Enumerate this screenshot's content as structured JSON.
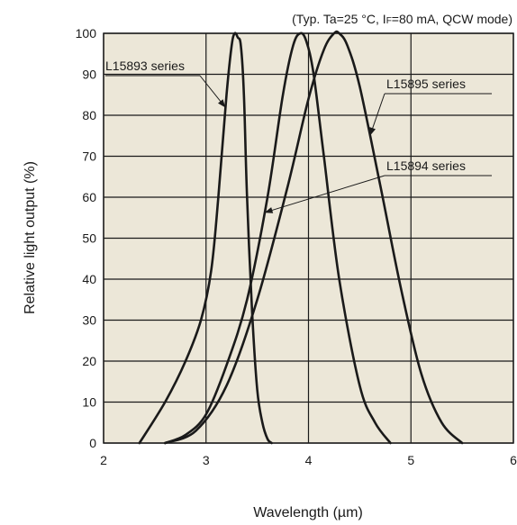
{
  "chart_data": {
    "type": "line",
    "condition": "(Typ. Ta=25 °C, I",
    "condition_sub": "F",
    "condition_rest": "=80 mA, QCW mode)",
    "xlabel": "Wavelength (µm)",
    "ylabel": "Relative light output (%)",
    "xlim": [
      2,
      6
    ],
    "ylim": [
      0,
      100
    ],
    "x_ticks": [
      2,
      3,
      4,
      5,
      6
    ],
    "y_ticks": [
      0,
      10,
      20,
      30,
      40,
      50,
      60,
      70,
      80,
      90,
      100
    ],
    "grid": true,
    "plot_background": "#ece7d8",
    "line_color": "#1a1a1a",
    "series": [
      {
        "name": "L15893 series",
        "x": [
          2.35,
          2.6,
          2.8,
          2.95,
          3.05,
          3.12,
          3.2,
          3.25,
          3.28,
          3.31,
          3.34,
          3.37,
          3.4,
          3.45,
          3.5,
          3.55,
          3.6,
          3.64
        ],
        "y": [
          0,
          10,
          20,
          30,
          42,
          60,
          85,
          97,
          100,
          99,
          97,
          85,
          60,
          32,
          13,
          5,
          1,
          0
        ]
      },
      {
        "name": "L15894 series",
        "x": [
          2.6,
          2.8,
          3.0,
          3.2,
          3.4,
          3.6,
          3.75,
          3.85,
          3.92,
          3.98,
          4.05,
          4.15,
          4.3,
          4.5,
          4.65,
          4.8
        ],
        "y": [
          0,
          2,
          7,
          19,
          35,
          60,
          85,
          97,
          100,
          98,
          90,
          70,
          40,
          14,
          5,
          0
        ]
      },
      {
        "name": "L15895 series",
        "x": [
          2.6,
          2.9,
          3.2,
          3.5,
          3.8,
          4.0,
          4.15,
          4.25,
          4.3,
          4.38,
          4.5,
          4.7,
          4.9,
          5.1,
          5.3,
          5.5
        ],
        "y": [
          0,
          3,
          14,
          35,
          63,
          84,
          96,
          100,
          100,
          97,
          87,
          63,
          38,
          17,
          5,
          0
        ]
      }
    ],
    "annotations": [
      {
        "text": "L15893 series",
        "series": 0,
        "point_x": 3.19
      },
      {
        "text": "L15895 series",
        "series": 2,
        "point_x": 4.6
      },
      {
        "text": "L15894 series",
        "series": 1,
        "point_x": 3.57
      }
    ]
  }
}
